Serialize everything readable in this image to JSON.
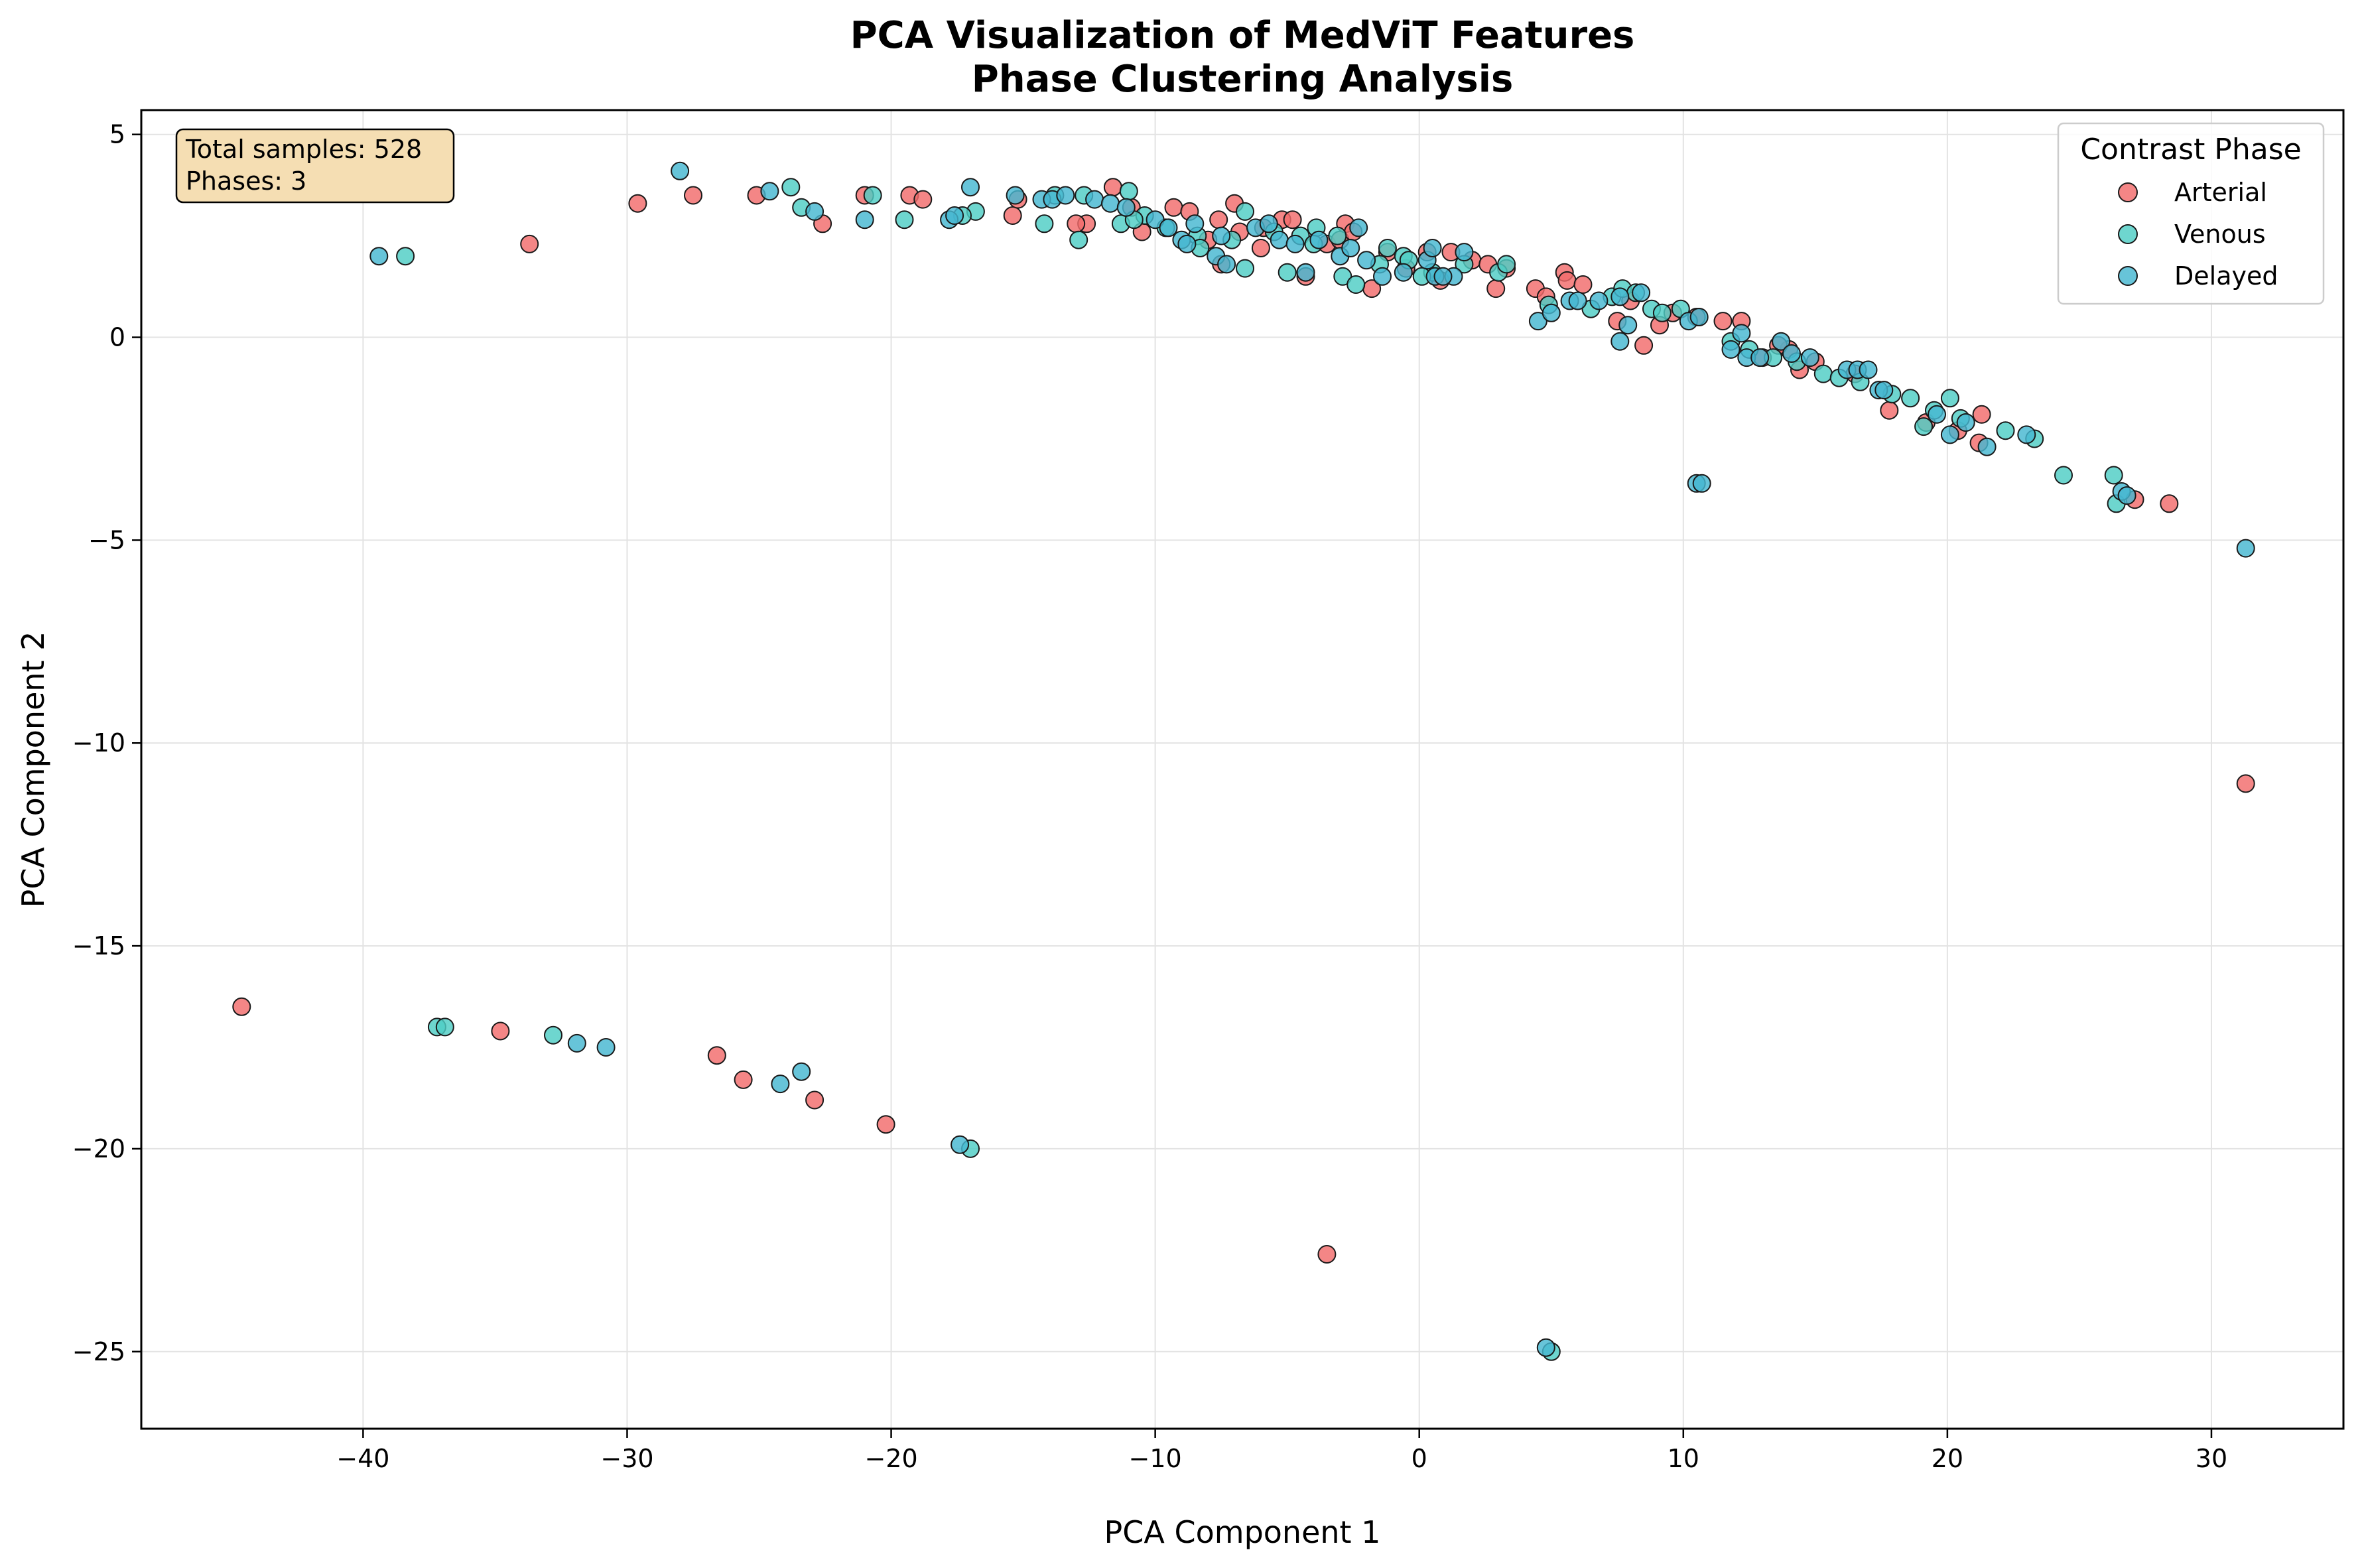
{
  "chart_data": {
    "type": "scatter",
    "title_line1": "PCA Visualization of MedViT Features",
    "title_line2": "Phase Clustering Analysis",
    "xlabel": "PCA Component 1",
    "ylabel": "PCA Component 2",
    "xlim": [
      -48.4,
      35
    ],
    "ylim": [
      -26.9,
      5.6
    ],
    "xticks": [
      -40,
      -30,
      -20,
      -10,
      0,
      10,
      20,
      30
    ],
    "yticks": [
      5,
      0,
      -5,
      -10,
      -15,
      -20,
      -25
    ],
    "xtick_labels": [
      "−40",
      "−30",
      "−20",
      "−10",
      "0",
      "10",
      "20",
      "30"
    ],
    "ytick_labels": [
      "5",
      "0",
      "−5",
      "−10",
      "−15",
      "−20",
      "−25"
    ],
    "grid": true,
    "legend": {
      "title": "Contrast Phase",
      "placement": "top-right"
    },
    "info_box": {
      "line1": "Total samples: 528",
      "line2": "Phases: 3"
    },
    "series": [
      {
        "name": "Arterial",
        "color": "#f26b6b",
        "points": [
          [
            -44.6,
            -16.5
          ],
          [
            -34.8,
            -17.1
          ],
          [
            -26.6,
            -17.7
          ],
          [
            -25.6,
            -18.3
          ],
          [
            -22.9,
            -18.8
          ],
          [
            -20.2,
            -19.4
          ],
          [
            -3.5,
            -22.6
          ],
          [
            31.3,
            -11.0
          ],
          [
            28.4,
            -4.1
          ],
          [
            27.1,
            -4.0
          ],
          [
            -33.7,
            2.3
          ],
          [
            -29.6,
            3.3
          ],
          [
            -27.5,
            3.5
          ],
          [
            -25.1,
            3.5
          ],
          [
            -22.6,
            2.8
          ],
          [
            -21.0,
            3.5
          ],
          [
            -19.3,
            3.5
          ],
          [
            -18.8,
            3.4
          ],
          [
            -15.4,
            3.0
          ],
          [
            -15.2,
            3.4
          ],
          [
            -12.6,
            2.8
          ],
          [
            -11.6,
            3.7
          ],
          [
            -10.9,
            3.2
          ],
          [
            -10.5,
            2.6
          ],
          [
            -9.3,
            3.2
          ],
          [
            -8.7,
            3.1
          ],
          [
            -7.6,
            2.9
          ],
          [
            -7.5,
            1.8
          ],
          [
            -7.0,
            3.3
          ],
          [
            -6.8,
            2.6
          ],
          [
            -5.9,
            2.7
          ],
          [
            -5.2,
            2.9
          ],
          [
            -4.8,
            2.9
          ],
          [
            -4.3,
            1.5
          ],
          [
            -3.5,
            2.3
          ],
          [
            -3.0,
            2.4
          ],
          [
            -2.8,
            2.8
          ],
          [
            -2.5,
            2.6
          ],
          [
            -1.8,
            1.2
          ],
          [
            -1.2,
            2.1
          ],
          [
            -0.5,
            1.7
          ],
          [
            0.3,
            2.1
          ],
          [
            1.2,
            2.1
          ],
          [
            2.0,
            1.9
          ],
          [
            2.6,
            1.8
          ],
          [
            2.9,
            1.2
          ],
          [
            4.4,
            1.2
          ],
          [
            4.8,
            1.0
          ],
          [
            5.5,
            1.6
          ],
          [
            5.6,
            1.4
          ],
          [
            6.2,
            1.3
          ],
          [
            7.5,
            0.4
          ],
          [
            8.5,
            -0.2
          ],
          [
            9.1,
            0.3
          ],
          [
            9.6,
            0.6
          ],
          [
            11.5,
            0.4
          ],
          [
            12.2,
            0.4
          ],
          [
            13.0,
            -0.5
          ],
          [
            14.0,
            -0.3
          ],
          [
            14.4,
            -0.8
          ],
          [
            15.0,
            -0.6
          ],
          [
            17.8,
            -1.8
          ],
          [
            19.2,
            -2.1
          ],
          [
            20.4,
            -2.3
          ],
          [
            21.2,
            -2.6
          ],
          [
            21.3,
            -1.9
          ],
          [
            -13.0,
            2.8
          ],
          [
            -8.0,
            2.4
          ],
          [
            -6.0,
            2.2
          ],
          [
            0.8,
            1.4
          ],
          [
            3.3,
            1.7
          ],
          [
            8.0,
            0.9
          ],
          [
            10.5,
            0.5
          ],
          [
            13.6,
            -0.2
          ],
          [
            16.5,
            -0.9
          ]
        ]
      },
      {
        "name": "Venous",
        "color": "#4ecdc4",
        "points": [
          [
            -38.4,
            2.0
          ],
          [
            -37.2,
            -17.0
          ],
          [
            -36.9,
            -17.0
          ],
          [
            -32.8,
            -17.2
          ],
          [
            -17.0,
            -20.0
          ],
          [
            -23.8,
            3.7
          ],
          [
            -23.4,
            3.2
          ],
          [
            -20.7,
            3.5
          ],
          [
            -19.5,
            2.9
          ],
          [
            -16.8,
            3.1
          ],
          [
            -14.2,
            2.8
          ],
          [
            -13.8,
            3.5
          ],
          [
            -12.7,
            3.5
          ],
          [
            -12.9,
            2.4
          ],
          [
            -11.3,
            2.8
          ],
          [
            -11.0,
            3.6
          ],
          [
            -10.4,
            3.0
          ],
          [
            -9.6,
            2.7
          ],
          [
            -8.4,
            2.5
          ],
          [
            -8.3,
            2.2
          ],
          [
            -7.1,
            2.4
          ],
          [
            -6.6,
            1.7
          ],
          [
            -6.6,
            3.1
          ],
          [
            -5.5,
            2.6
          ],
          [
            -5.0,
            1.6
          ],
          [
            -4.5,
            2.5
          ],
          [
            -3.9,
            2.7
          ],
          [
            -3.1,
            2.5
          ],
          [
            -2.9,
            1.5
          ],
          [
            -2.4,
            1.3
          ],
          [
            -1.5,
            1.8
          ],
          [
            -1.2,
            2.2
          ],
          [
            -0.6,
            2.0
          ],
          [
            -0.4,
            1.9
          ],
          [
            0.5,
            1.6
          ],
          [
            1.7,
            1.8
          ],
          [
            3.0,
            1.6
          ],
          [
            3.3,
            1.8
          ],
          [
            6.5,
            0.7
          ],
          [
            7.3,
            1.0
          ],
          [
            7.7,
            1.2
          ],
          [
            8.2,
            1.1
          ],
          [
            8.8,
            0.7
          ],
          [
            9.2,
            0.6
          ],
          [
            9.9,
            0.7
          ],
          [
            11.8,
            -0.1
          ],
          [
            13.4,
            -0.5
          ],
          [
            14.3,
            -0.6
          ],
          [
            15.3,
            -0.9
          ],
          [
            16.7,
            -1.1
          ],
          [
            17.9,
            -1.4
          ],
          [
            18.6,
            -1.5
          ],
          [
            19.1,
            -2.2
          ],
          [
            19.5,
            -1.8
          ],
          [
            20.1,
            -1.5
          ],
          [
            20.5,
            -2.0
          ],
          [
            22.2,
            -2.3
          ],
          [
            23.3,
            -2.5
          ],
          [
            24.4,
            -3.4
          ],
          [
            26.3,
            -3.4
          ],
          [
            26.4,
            -4.1
          ],
          [
            5.0,
            -25.0
          ],
          [
            -17.3,
            3.0
          ],
          [
            -10.8,
            2.9
          ],
          [
            -4.0,
            2.3
          ],
          [
            0.1,
            1.5
          ],
          [
            4.9,
            0.8
          ],
          [
            12.5,
            -0.3
          ],
          [
            15.9,
            -1.0
          ]
        ]
      },
      {
        "name": "Delayed",
        "color": "#45b7d1",
        "points": [
          [
            -39.4,
            2.0
          ],
          [
            -31.9,
            -17.4
          ],
          [
            -30.8,
            -17.5
          ],
          [
            -24.2,
            -18.4
          ],
          [
            -23.4,
            -18.1
          ],
          [
            -17.4,
            -19.9
          ],
          [
            4.8,
            -24.9
          ],
          [
            10.5,
            -3.6
          ],
          [
            10.7,
            -3.6
          ],
          [
            31.3,
            -5.2
          ],
          [
            26.6,
            -3.8
          ],
          [
            26.8,
            -3.9
          ],
          [
            -28.0,
            4.1
          ],
          [
            -24.6,
            3.6
          ],
          [
            -22.9,
            3.1
          ],
          [
            -21.0,
            2.9
          ],
          [
            -17.8,
            2.9
          ],
          [
            -17.6,
            3.0
          ],
          [
            -17.0,
            3.7
          ],
          [
            -15.3,
            3.5
          ],
          [
            -14.3,
            3.4
          ],
          [
            -13.9,
            3.4
          ],
          [
            -13.4,
            3.5
          ],
          [
            -12.3,
            3.4
          ],
          [
            -11.7,
            3.3
          ],
          [
            -11.1,
            3.2
          ],
          [
            -10.0,
            2.9
          ],
          [
            -9.5,
            2.7
          ],
          [
            -9.0,
            2.4
          ],
          [
            -8.8,
            2.3
          ],
          [
            -8.5,
            2.8
          ],
          [
            -7.7,
            2.0
          ],
          [
            -7.3,
            1.8
          ],
          [
            -7.5,
            2.5
          ],
          [
            -6.2,
            2.7
          ],
          [
            -5.7,
            2.8
          ],
          [
            -5.3,
            2.4
          ],
          [
            -4.7,
            2.3
          ],
          [
            -4.3,
            1.6
          ],
          [
            -3.8,
            2.4
          ],
          [
            -3.0,
            2.0
          ],
          [
            -2.6,
            2.2
          ],
          [
            -2.3,
            2.7
          ],
          [
            -2.0,
            1.9
          ],
          [
            -1.4,
            1.5
          ],
          [
            -0.6,
            1.6
          ],
          [
            0.3,
            1.9
          ],
          [
            0.5,
            2.2
          ],
          [
            0.6,
            1.5
          ],
          [
            1.3,
            1.5
          ],
          [
            1.7,
            2.1
          ],
          [
            4.5,
            0.4
          ],
          [
            5.0,
            0.6
          ],
          [
            5.7,
            0.9
          ],
          [
            6.0,
            0.9
          ],
          [
            6.8,
            0.9
          ],
          [
            7.6,
            -0.1
          ],
          [
            7.9,
            0.3
          ],
          [
            7.6,
            1.0
          ],
          [
            8.4,
            1.1
          ],
          [
            10.2,
            0.4
          ],
          [
            10.6,
            0.5
          ],
          [
            11.8,
            -0.3
          ],
          [
            12.2,
            0.1
          ],
          [
            12.4,
            -0.5
          ],
          [
            12.9,
            -0.5
          ],
          [
            13.7,
            -0.1
          ],
          [
            14.1,
            -0.4
          ],
          [
            14.8,
            -0.5
          ],
          [
            16.2,
            -0.8
          ],
          [
            16.6,
            -0.8
          ],
          [
            17.0,
            -0.8
          ],
          [
            17.4,
            -1.3
          ],
          [
            17.6,
            -1.3
          ],
          [
            19.6,
            -1.9
          ],
          [
            20.1,
            -2.4
          ],
          [
            20.7,
            -2.1
          ],
          [
            21.5,
            -2.7
          ],
          [
            23.0,
            -2.4
          ],
          [
            0.9,
            1.5
          ]
        ]
      }
    ]
  }
}
